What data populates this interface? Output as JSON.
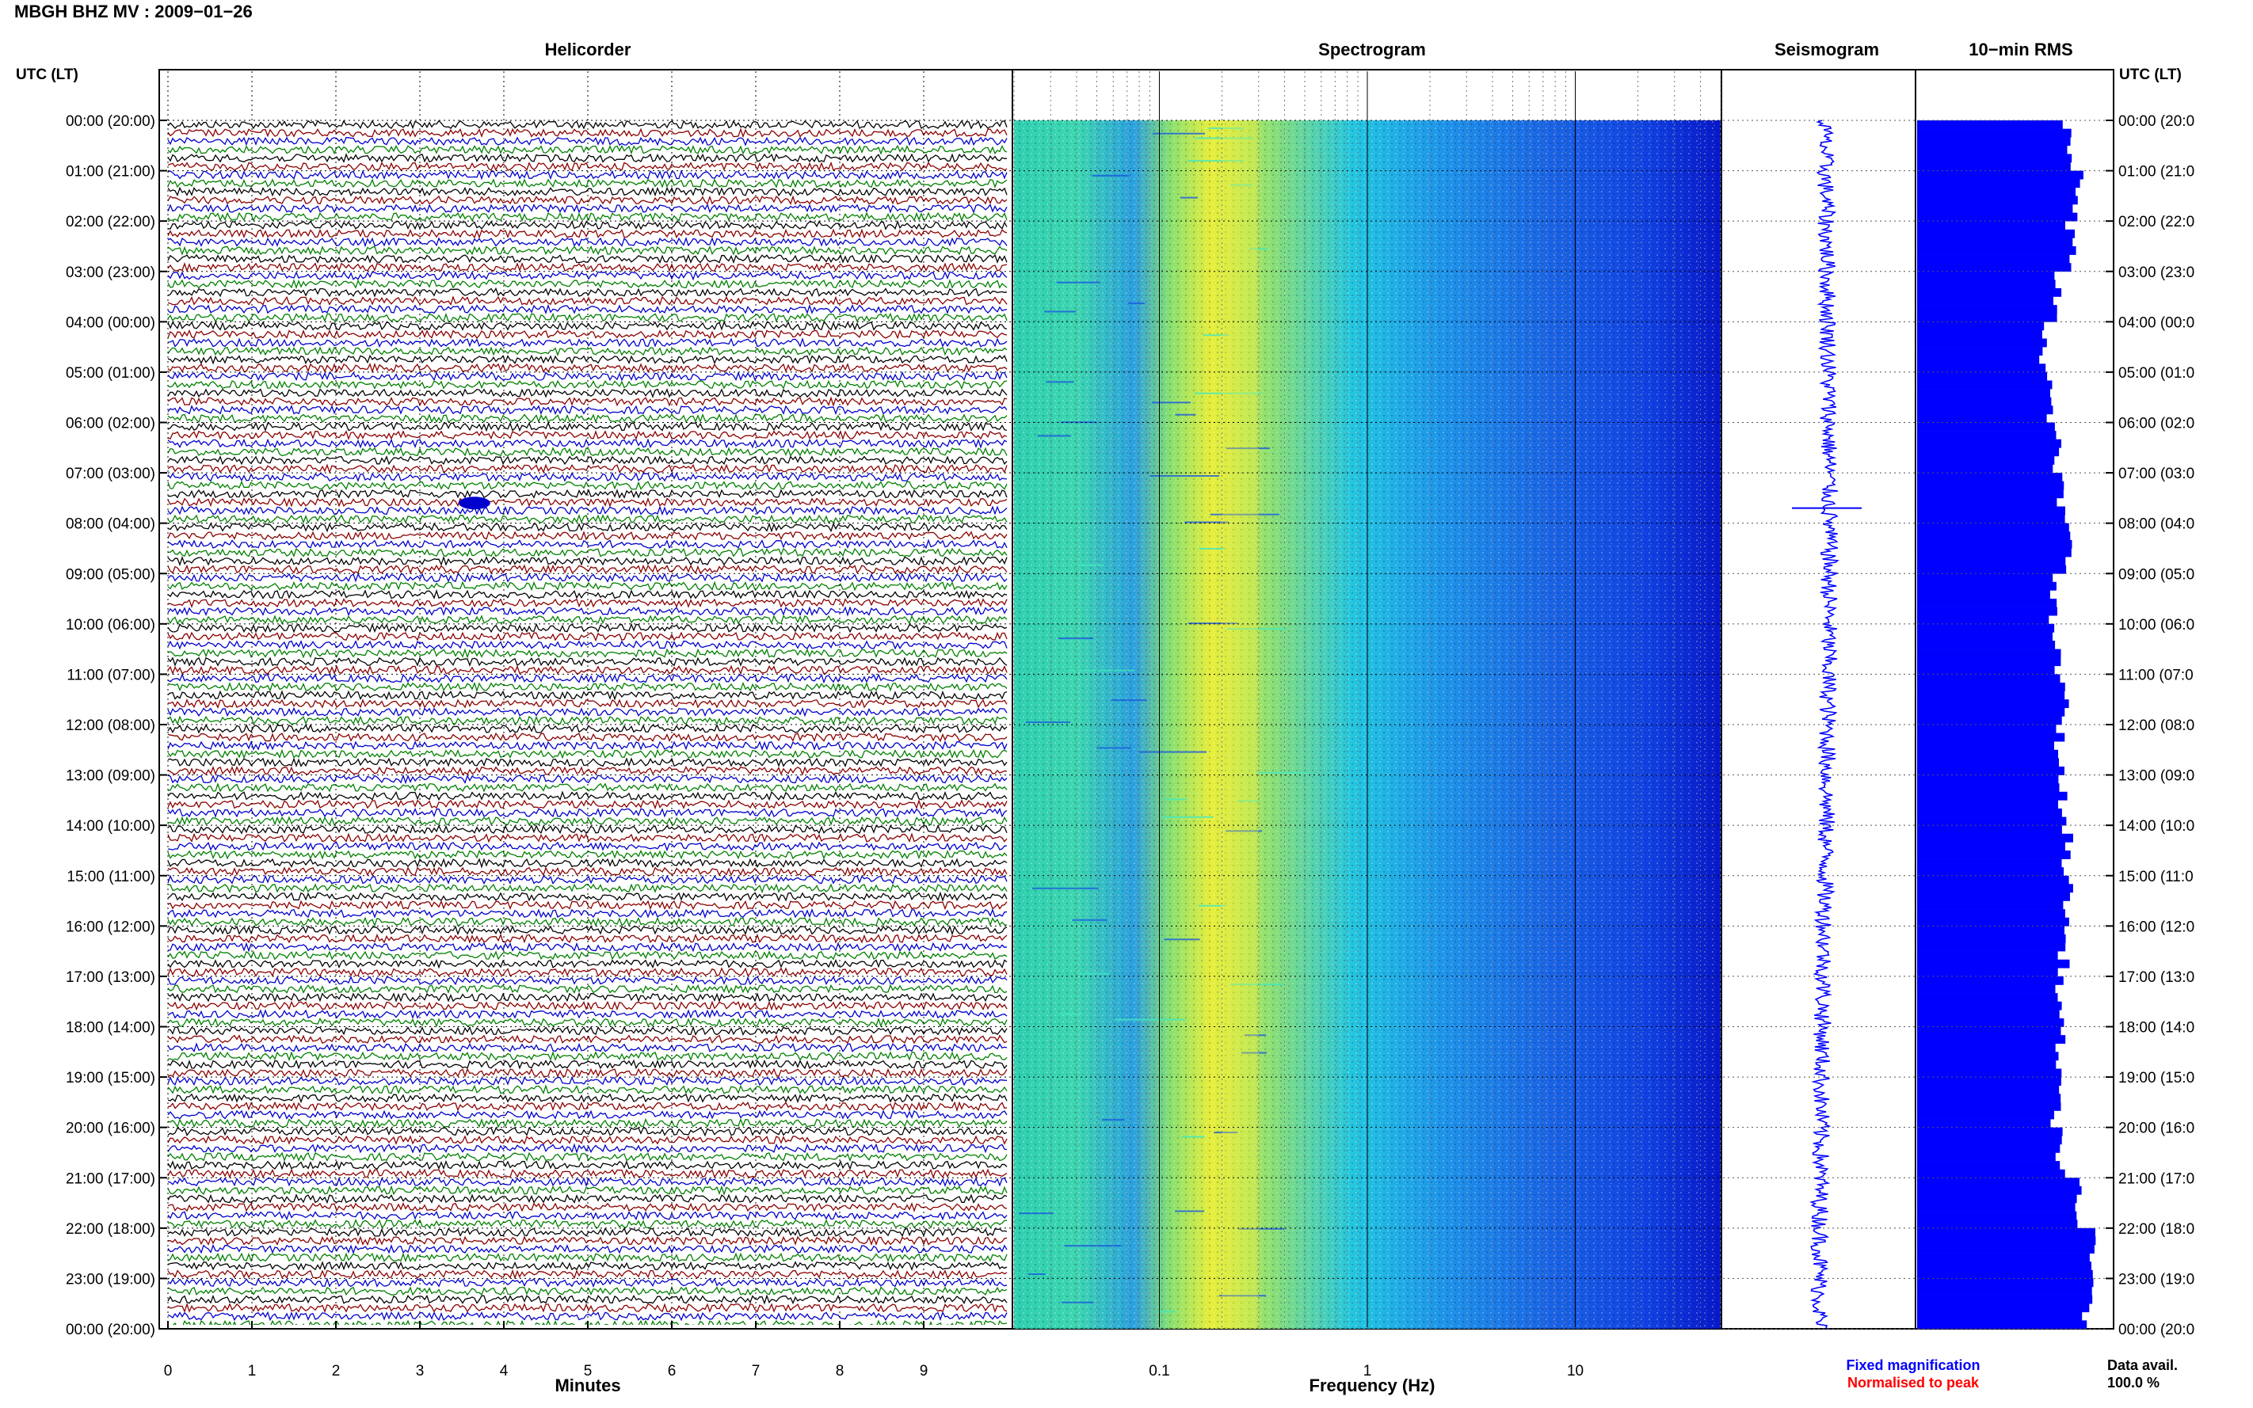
{
  "header": {
    "title": "MBGH BHZ MV : 2009−01−26",
    "left_axis_label": "UTC (LT)",
    "right_axis_label": "UTC (LT)"
  },
  "panels": {
    "helicorder": "Helicorder",
    "spectrogram": "Spectrogram",
    "seismogram": "Seismogram",
    "rms": "10−min RMS"
  },
  "legend": {
    "fixed": "Fixed magnification",
    "normalised": "Normalised to peak",
    "fixed_color": "#0000ff",
    "normalised_color": "#ff0000"
  },
  "availability": {
    "label": "Data avail.",
    "value": "100.0 %"
  },
  "colors": {
    "trace_cycle": [
      "#000000",
      "#8b0000",
      "#0000cd",
      "#008000"
    ],
    "rms_bar": "#0000ff",
    "seismogram": "#0000ff"
  },
  "chart_data": [
    {
      "type": "line",
      "title": "Helicorder",
      "xlabel": "Minutes",
      "ylabel": "UTC (LT)",
      "xlim": [
        0,
        10
      ],
      "x_ticks": [
        "0",
        "1",
        "2",
        "3",
        "4",
        "5",
        "6",
        "7",
        "8",
        "9"
      ],
      "y_ticks": [
        "00:00 (20:00)",
        "01:00 (21:00)",
        "02:00 (22:00)",
        "03:00 (23:00)",
        "04:00 (00:00)",
        "05:00 (01:00)",
        "06:00 (02:00)",
        "07:00 (03:00)",
        "08:00 (04:00)",
        "09:00 (05:00)",
        "10:00 (06:00)",
        "11:00 (07:00)",
        "12:00 (08:00)",
        "13:00 (09:00)",
        "14:00 (10:00)",
        "15:00 (11:00)",
        "16:00 (12:00)",
        "17:00 (13:00)",
        "18:00 (14:00)",
        "19:00 (15:00)",
        "20:00 (16:00)",
        "21:00 (17:00)",
        "22:00 (18:00)",
        "23:00 (19:00)",
        "00:00 (20:00)"
      ],
      "y_right_ticks": [
        "00:00 (20:0",
        "01:00 (21:0",
        "02:00 (22:0",
        "03:00 (23:0",
        "04:00 (00:0",
        "05:00 (01:0",
        "06:00 (02:0",
        "07:00 (03:0",
        "08:00 (04:0",
        "09:00 (05:0",
        "10:00 (06:0",
        "11:00 (07:0",
        "12:00 (08:0",
        "13:00 (09:0",
        "14:00 (10:0",
        "15:00 (11:0",
        "16:00 (12:0",
        "17:00 (13:0",
        "18:00 (14:0",
        "19:00 (15:0",
        "20:00 (16:0",
        "21:00 (17:0",
        "22:00 (18:0",
        "23:00 (19:0",
        "00:00 (20:0"
      ],
      "rows": 144,
      "minutes_per_row": 10,
      "events": [
        {
          "hour": 7.6,
          "minute": 3.5,
          "duration_min": 0.3
        }
      ]
    },
    {
      "type": "heatmap",
      "title": "Spectrogram",
      "xlabel": "Frequency (Hz)",
      "x_scale": "log",
      "xlim": [
        0.02,
        50
      ],
      "x_tick_values": [
        0.1,
        1,
        10
      ],
      "x_tick_labels": [
        "0.1",
        "1",
        "10"
      ],
      "y_range_hours": [
        0,
        24
      ],
      "peak_band_hz": [
        0.2,
        0.3
      ],
      "grid": true
    },
    {
      "type": "line",
      "title": "Seismogram",
      "y_range_hours": [
        0,
        24
      ],
      "spike_hour": 7.7
    },
    {
      "type": "bar",
      "title": "10−min RMS",
      "orientation": "horizontal",
      "bins": 144,
      "y_range_hours": [
        0,
        24
      ],
      "relative_values_by_hour": [
        0.78,
        0.84,
        0.8,
        0.72,
        0.66,
        0.68,
        0.72,
        0.74,
        0.8,
        0.7,
        0.72,
        0.76,
        0.74,
        0.75,
        0.78,
        0.78,
        0.76,
        0.74,
        0.74,
        0.72,
        0.74,
        0.82,
        0.92,
        0.88
      ]
    }
  ]
}
